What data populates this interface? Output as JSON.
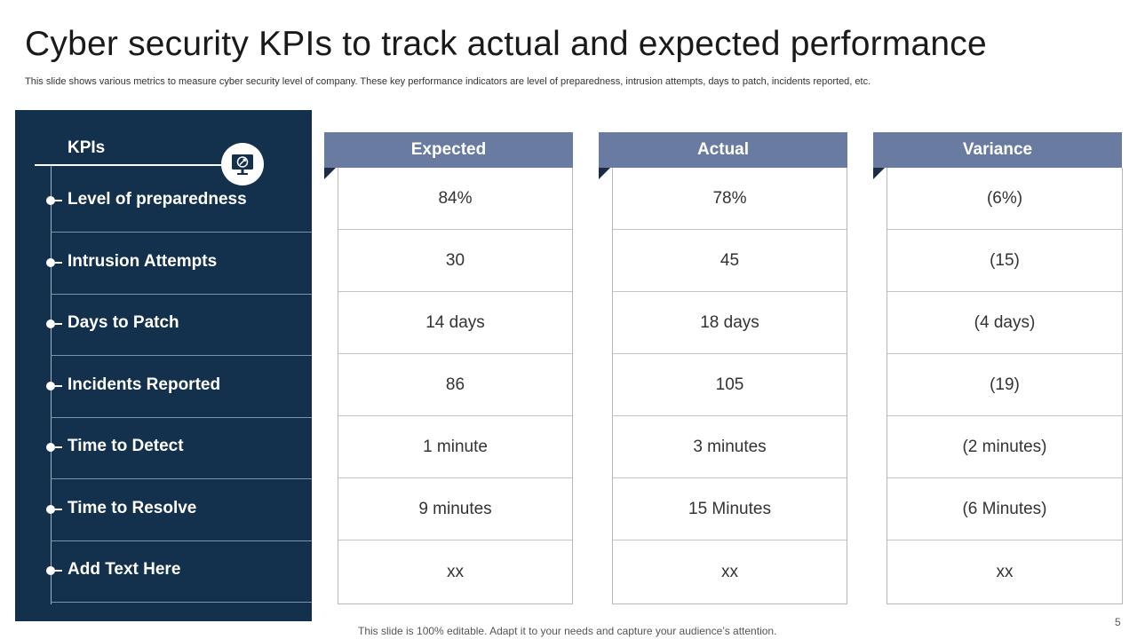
{
  "title": "Cyber security KPIs to track actual and expected performance",
  "subtitle": "This slide shows various metrics to measure cyber security level of company. These key performance indicators are level of preparedness, intrusion attempts, days to patch, incidents reported, etc.",
  "kpi_panel": {
    "heading": "KPIs",
    "icon": "monitor-security-icon",
    "items": [
      "Level of preparedness",
      "Intrusion Attempts",
      "Days to Patch",
      "Incidents Reported",
      "Time to Detect",
      "Time to Resolve",
      "Add Text Here"
    ]
  },
  "columns": [
    {
      "header": "Expected",
      "values": [
        "84%",
        "30",
        "14 days",
        "86",
        "1 minute",
        "9 minutes",
        "xx"
      ]
    },
    {
      "header": "Actual",
      "values": [
        "78%",
        "45",
        "18 days",
        "105",
        "3 minutes",
        "15 Minutes",
        "xx"
      ]
    },
    {
      "header": "Variance",
      "values": [
        "(6%)",
        "(15)",
        "(4 days)",
        "(19)",
        "(2 minutes)",
        "(6 Minutes)",
        "xx"
      ]
    }
  ],
  "footer": "This slide is 100% editable. Adapt it to your needs and capture your audience’s attention.",
  "page_number": "5",
  "colors": {
    "panel_bg": "#13304d",
    "header_bg": "#6a7ba1",
    "accent_dark": "#1c2a44"
  }
}
